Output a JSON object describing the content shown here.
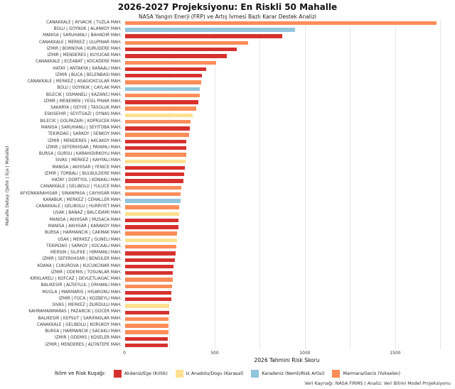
{
  "title": "2026-2027 Projeksiyonu: En Riskli 50 Mahalle",
  "subtitle": "NASA Yangın Enerji (FRP) ve Artış İvmesi Bazlı Karar Destek Analizi",
  "axes": {
    "xlabel": "2026 Tahmini Risk Skoru",
    "ylabel": "Mahalle Detayı (Şehir | İlçe | Mahalle)"
  },
  "legend": {
    "title": "İklim ve Risk Kuşağı:",
    "items": [
      {
        "key": "akdeniz",
        "label": "Akdeniz/Ege (Kritik)",
        "color": "#d7312e"
      },
      {
        "key": "karasal",
        "label": "Ic Anadolu/Dogu (Karasal)",
        "color": "#fee090"
      },
      {
        "key": "karadeniz",
        "label": "Karadeniz (Nemli/Risk Artisi)",
        "color": "#92c5de"
      },
      {
        "key": "marmara",
        "label": "Marmara/Gecis (Yukselen)",
        "color": "#fc8d59"
      }
    ]
  },
  "caption": "Veri Kaynağı: NASA FIRMS | Analiz: Veri Bilimi Model Projeksiyonu",
  "chart_data": {
    "type": "bar",
    "orientation": "horizontal",
    "title": "2026-2027 Projeksiyonu: En Riskli 50 Mahalle",
    "xlabel": "2026 Tahmini Risk Skoru",
    "ylabel": "Mahalle Detayı (Şehir | İlçe | Mahalle)",
    "xlim": [
      0,
      1800
    ],
    "grid_step": 250,
    "x_ticks": [
      0,
      500,
      1000,
      1500
    ],
    "items": [
      {
        "label": "CANAKKALE | AYVACIK | TUZLA MAH.",
        "value": 1735,
        "group": "marmara"
      },
      {
        "label": "BOLU | GOYNUK | ALANKOY MAH.",
        "value": 950,
        "group": "karadeniz"
      },
      {
        "label": "MANISA | SARUHANLI | BAHADIR MAH.",
        "value": 878,
        "group": "akdeniz"
      },
      {
        "label": "CANAKKALE | MERKEZ | ULUPINAR MAH.",
        "value": 690,
        "group": "marmara"
      },
      {
        "label": "IZMIR | BORNOVA | KURUDERE MAH.",
        "value": 628,
        "group": "akdeniz"
      },
      {
        "label": "IZMIR | MENDERES | KUYUCAK MAH.",
        "value": 572,
        "group": "akdeniz"
      },
      {
        "label": "CANAKKALE | ECEABAT | KOCADERE MAH.",
        "value": 514,
        "group": "marmara"
      },
      {
        "label": "HATAY | ANTAKYA | KARAALI MAH.",
        "value": 457,
        "group": "akdeniz"
      },
      {
        "label": "IZMIR | BUCA | BELENBASI MAH.",
        "value": 434,
        "group": "akdeniz"
      },
      {
        "label": "CANAKKALE | MERKEZ | ASAGIOKCULAR MAH.",
        "value": 429,
        "group": "marmara"
      },
      {
        "label": "BOLU | GOYNUK | CAYLAK MAH.",
        "value": 423,
        "group": "karadeniz"
      },
      {
        "label": "BILECIK | OSMANELI | KAZANCI MAH.",
        "value": 421,
        "group": "marmara"
      },
      {
        "label": "IZMIR | MENEMEN | YESIL PINAR MAH.",
        "value": 414,
        "group": "akdeniz"
      },
      {
        "label": "SAKARYA | GEYVE | TASOLUK MAH.",
        "value": 403,
        "group": "marmara"
      },
      {
        "label": "ESKISEHIR | SEYITGAZI | OYNAS MAH.",
        "value": 383,
        "group": "karasal"
      },
      {
        "label": "BILECIK | GOLPAZARI | KOPRUCEK MAH.",
        "value": 370,
        "group": "marmara"
      },
      {
        "label": "MANISA | SARUHANLI | SEYITOBA MAH.",
        "value": 368,
        "group": "akdeniz"
      },
      {
        "label": "TEKIRDAG | SARKOY | SENKOY MAH.",
        "value": 364,
        "group": "marmara"
      },
      {
        "label": "IZMIR | MENDERES | AKCAKOY MAH.",
        "value": 348,
        "group": "akdeniz"
      },
      {
        "label": "IZMIR | SEFERIHISAR | PAYAMLI MAH.",
        "value": 347,
        "group": "akdeniz"
      },
      {
        "label": "BURSA | GURSU | KARAHIDIRKOYU MAH.",
        "value": 346,
        "group": "marmara"
      },
      {
        "label": "SIVAS | MERKEZ | KAHYALI MAH.",
        "value": 343,
        "group": "karasal"
      },
      {
        "label": "MANISA | AKHISAR | YENICE MAH.",
        "value": 338,
        "group": "akdeniz"
      },
      {
        "label": "IZMIR | TORBALI | BULBULDERE MAH.",
        "value": 335,
        "group": "akdeniz"
      },
      {
        "label": "HATAY | DORTYOL | KONAKLI MAH.",
        "value": 330,
        "group": "akdeniz"
      },
      {
        "label": "CANAKKALE | GELIBOLU | YULUCE MAH.",
        "value": 319,
        "group": "marmara"
      },
      {
        "label": "AFYONKARAHISAR | SINANPASA | CAYHISAR MAH.",
        "value": 315,
        "group": "marmara"
      },
      {
        "label": "KARABUK | MERKEZ | CEMALLER MAH.",
        "value": 314,
        "group": "karadeniz"
      },
      {
        "label": "CANAKKALE | GELIBOLU | HURRIYET MAH.",
        "value": 309,
        "group": "marmara"
      },
      {
        "label": "USAK | BANAZ | BALCIDAMI MAH.",
        "value": 306,
        "group": "karasal"
      },
      {
        "label": "MANISA | AKHISAR | MUSACA MAH.",
        "value": 305,
        "group": "akdeniz"
      },
      {
        "label": "MANISA | AKHISAR | KARAKOY MAH.",
        "value": 303,
        "group": "akdeniz"
      },
      {
        "label": "BURSA | HARMANCIK | CAKMAK MAH.",
        "value": 296,
        "group": "marmara"
      },
      {
        "label": "USAK | MERKEZ | GUNELI MAH.",
        "value": 294,
        "group": "karasal"
      },
      {
        "label": "TEKIRDAG | SARKOY | KOCAALI MAH.",
        "value": 293,
        "group": "marmara"
      },
      {
        "label": "MERSIN | SILIFKE | HIRMANLI MAH.",
        "value": 288,
        "group": "akdeniz"
      },
      {
        "label": "IZMIR | SEFERIHISAR | BENGILER MAH.",
        "value": 283,
        "group": "akdeniz"
      },
      {
        "label": "ADANA | CUKUROVA | KUCUKCINAR MAH.",
        "value": 276,
        "group": "akdeniz"
      },
      {
        "label": "IZMIR | ODEMIS | TOSUNLAR MAH.",
        "value": 272,
        "group": "akdeniz"
      },
      {
        "label": "KIRKLARELI | KOFCAZ | DEVLETLIAGAC MAH.",
        "value": 271,
        "group": "marmara"
      },
      {
        "label": "BALIKESIR | ALTIEYLUL | ORHANLI MAH.",
        "value": 268,
        "group": "marmara"
      },
      {
        "label": "MUGLA | MARMARIS | HISARONU MAH.",
        "value": 264,
        "group": "akdeniz"
      },
      {
        "label": "IZMIR | FOCA | KOZBEYLI MAH.",
        "value": 263,
        "group": "akdeniz"
      },
      {
        "label": "SIVAS | MERKEZ | DURDULU MAH.",
        "value": 254,
        "group": "karasal"
      },
      {
        "label": "KAHRAMANMARAS | PAZARCIK | GOCER MAH.",
        "value": 251,
        "group": "akdeniz"
      },
      {
        "label": "BALIKESIR | KEPSUT | SARIFAKILAR MAH.",
        "value": 250,
        "group": "marmara"
      },
      {
        "label": "CANAKKALE | GELIBOLU | KORUKOY MAH.",
        "value": 249,
        "group": "marmara"
      },
      {
        "label": "BURSA | HARMANCIK | SACAKLI MAH.",
        "value": 247,
        "group": "marmara"
      },
      {
        "label": "IZMIR | ODEMIS | KOSELER MAH.",
        "value": 246,
        "group": "akdeniz"
      },
      {
        "label": "IZMIR | MENDERES | ALTINTEPE MAH.",
        "value": 243,
        "group": "akdeniz"
      }
    ]
  }
}
